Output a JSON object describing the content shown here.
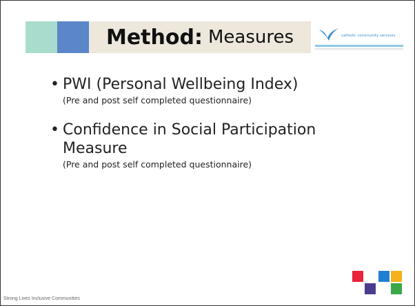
{
  "slide": {
    "title": {
      "main": "Method:",
      "sub": "Measures"
    },
    "logo_text": "catholic community services",
    "bullets": [
      {
        "heading": "PWI (Personal Wellbeing Index)",
        "note": "(Pre and post self completed questionnaire)"
      },
      {
        "heading": "Confidence in Social Participation Measure",
        "note": "(Pre and post self completed questionnaire)"
      }
    ],
    "footer": "Strong Lives Inclusive Communities"
  }
}
